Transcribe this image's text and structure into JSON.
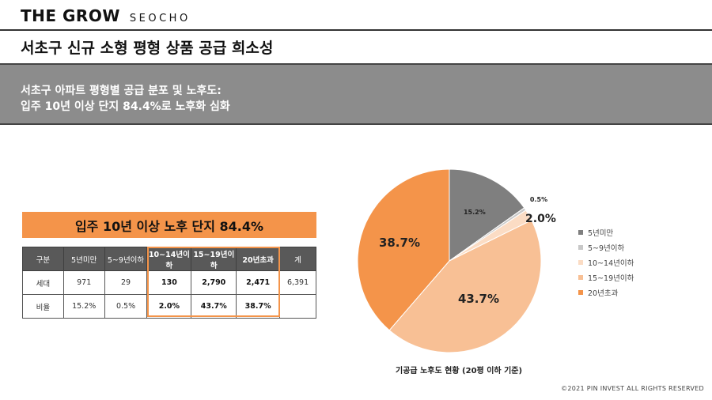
{
  "brand": {
    "name": "THE GROW",
    "sub": "SEOCHO"
  },
  "page_title": "서초구 신규 소형 평형 상품 공급 희소성",
  "banner": {
    "line1": "서초구 아파트 평형별 공급 분포 및 노후도:",
    "line2": "입주 10년 이상 단지 84.4%로 노후화 심화"
  },
  "callout": "입주 10년 이상 노후 단지 84.4%",
  "table": {
    "headers": [
      "구분",
      "5년미만",
      "5~9년이하",
      "10~14년이하",
      "15~19년이하",
      "20년초과",
      "계"
    ],
    "rows": [
      [
        "세대",
        "971",
        "29",
        "130",
        "2,790",
        "2,471",
        "6,391"
      ],
      [
        "비율",
        "15.2%",
        "0.5%",
        "2.0%",
        "43.7%",
        "38.7%",
        ""
      ]
    ]
  },
  "colors": {
    "accent": "#f4944a",
    "banner": "#8c8c8c",
    "header": "#595959"
  },
  "chart_data": {
    "type": "pie",
    "title": "기공급 노후도 현황 (20평 이하 기준)",
    "categories": [
      "5년미만",
      "5~9년이하",
      "10~14년이하",
      "15~19년이하",
      "20년초과"
    ],
    "values": [
      15.2,
      0.5,
      2.0,
      43.7,
      38.7
    ],
    "labels": [
      "15.2%",
      "0.5%",
      "2.0%",
      "43.7%",
      "38.7%"
    ],
    "colors": [
      "#7f7f7f",
      "#c8c8c8",
      "#fbdcc4",
      "#f8c095",
      "#f4944a"
    ],
    "legend": "right"
  },
  "copyright": "©2021 PIN INVEST ALL RIGHTS RESERVED"
}
